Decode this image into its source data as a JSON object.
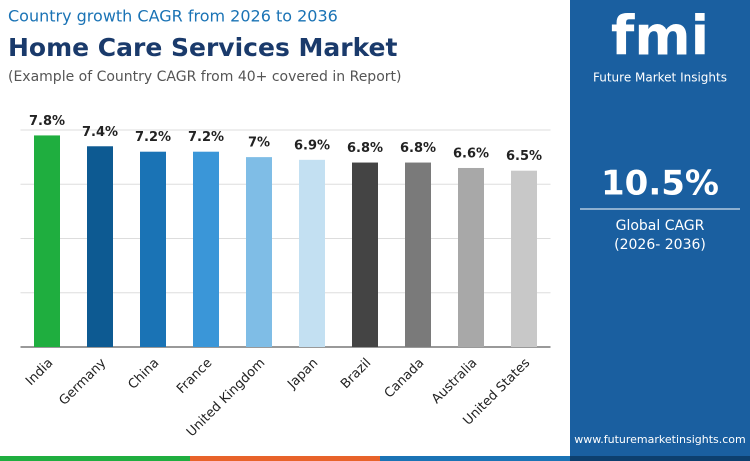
{
  "chart_data": {
    "type": "bar",
    "subtitle": "Country growth CAGR from 2026 to 2036",
    "title": "Home Care Services Market",
    "note": "(Example of Country CAGR from 40+ covered in Report)",
    "categories": [
      "India",
      "Germany",
      "China",
      "France",
      "United Kingdom",
      "Japan",
      "Brazil",
      "Canada",
      "Australia",
      "United States"
    ],
    "values": [
      7.8,
      7.4,
      7.2,
      7.2,
      7,
      6.9,
      6.8,
      6.8,
      6.6,
      6.5
    ],
    "value_labels": [
      "7.8%",
      "7.4%",
      "7.2%",
      "7.2%",
      "7%",
      "6.9%",
      "6.8%",
      "6.8%",
      "6.6%",
      "6.5%"
    ],
    "colors": [
      "#1fae3f",
      "#0d5a92",
      "#1a73b5",
      "#3a96d8",
      "#7fbde6",
      "#c3e0f2",
      "#444444",
      "#7a7a7a",
      "#a8a8a8",
      "#c8c8c8"
    ],
    "ylim": [
      0,
      8
    ],
    "yticks": [
      0,
      2,
      4,
      6,
      8
    ],
    "grid": true
  },
  "panel": {
    "logo": "fmi",
    "brand": "Future Market Insights",
    "headline": "10.5%",
    "caption": "Global CAGR",
    "period": "(2026- 2036)",
    "website": "www.futuremarketinsights.com"
  }
}
